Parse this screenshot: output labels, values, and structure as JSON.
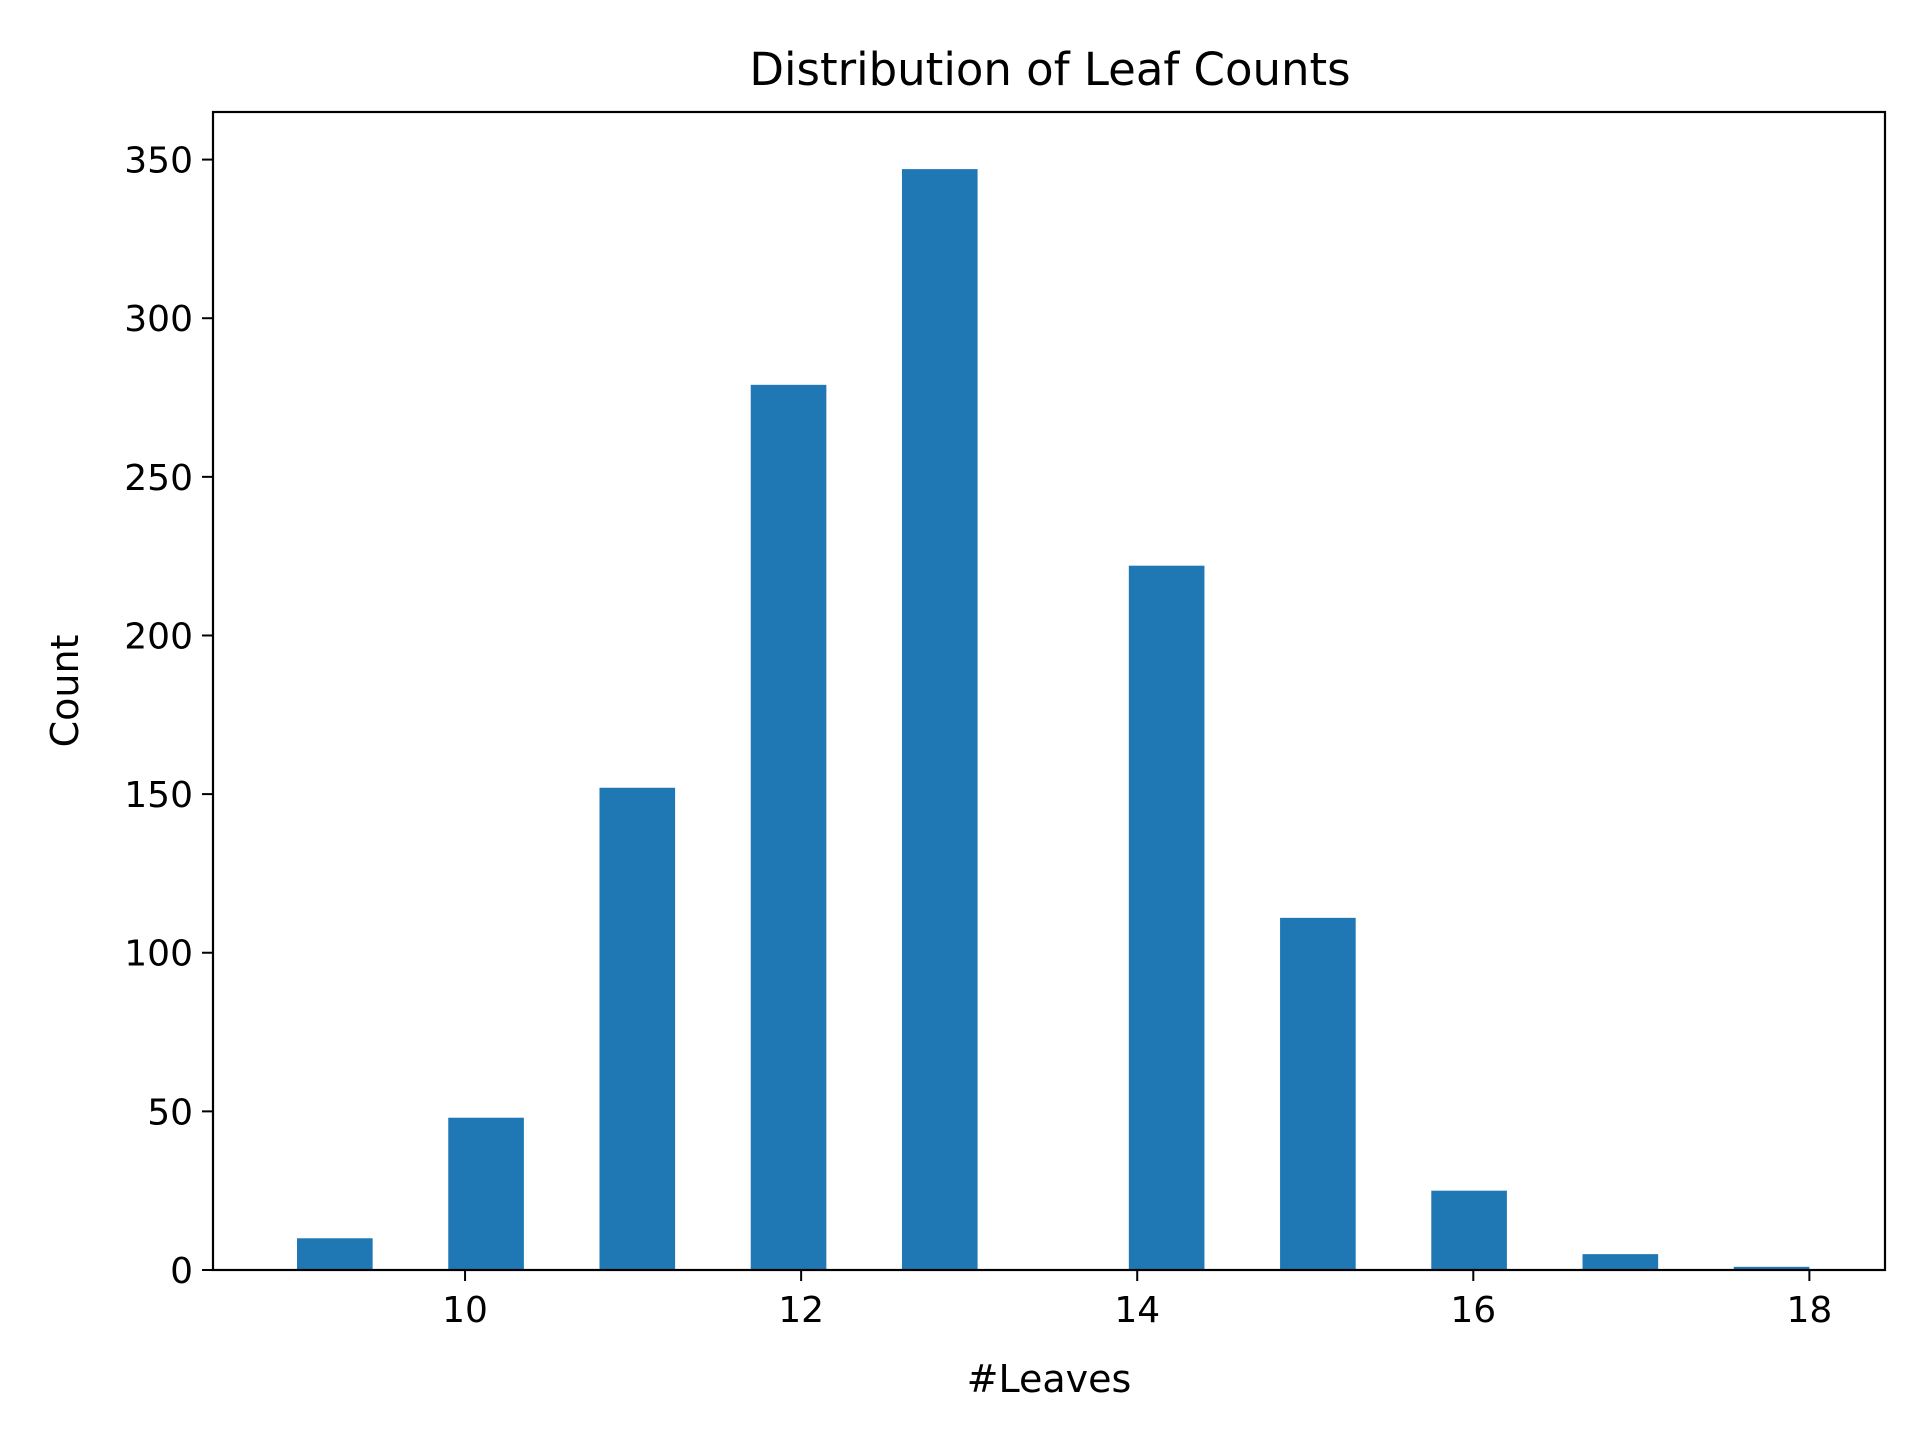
{
  "chart_data": {
    "type": "bar",
    "title": "Distribution of Leaf Counts",
    "xlabel": "#Leaves",
    "ylabel": "Count",
    "bar_color": "#1f77b4",
    "xlim": [
      8.5,
      18.45
    ],
    "ylim": [
      0,
      365
    ],
    "x_ticks": [
      10,
      12,
      14,
      16,
      18
    ],
    "y_ticks": [
      0,
      50,
      100,
      150,
      200,
      250,
      300,
      350
    ],
    "bins": [
      {
        "x0": 9.0,
        "x1": 9.45,
        "value": 10
      },
      {
        "x0": 9.9,
        "x1": 10.35,
        "value": 48
      },
      {
        "x0": 10.8,
        "x1": 11.25,
        "value": 152
      },
      {
        "x0": 11.7,
        "x1": 12.15,
        "value": 279
      },
      {
        "x0": 12.6,
        "x1": 13.05,
        "value": 347
      },
      {
        "x0": 13.5,
        "x1": 13.95,
        "value": 0
      },
      {
        "x0": 13.95,
        "x1": 14.4,
        "value": 222
      },
      {
        "x0": 14.85,
        "x1": 15.3,
        "value": 111
      },
      {
        "x0": 15.75,
        "x1": 16.2,
        "value": 25
      },
      {
        "x0": 16.65,
        "x1": 17.1,
        "value": 5
      },
      {
        "x0": 17.55,
        "x1": 18.0,
        "value": 1
      }
    ],
    "grid": false,
    "legend": "none"
  }
}
